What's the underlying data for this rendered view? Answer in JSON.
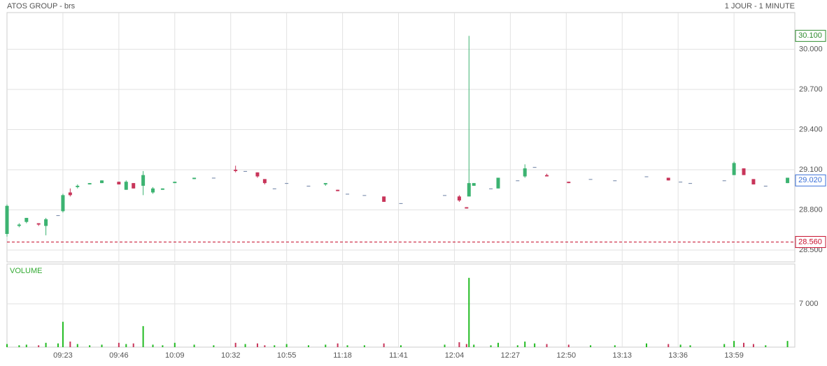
{
  "chart_data": {
    "type": "candlestick",
    "title": "ATOS GROUP - brs",
    "subtitle": "1 JOUR - 1 MINUTE",
    "x": [
      "09:00",
      "09:05",
      "09:08",
      "09:13",
      "09:16",
      "09:21",
      "09:23",
      "09:26",
      "09:29",
      "09:34",
      "09:39",
      "09:46",
      "09:49",
      "09:52",
      "09:56",
      "10:00",
      "10:04",
      "10:09",
      "10:17",
      "10:25",
      "10:34",
      "10:38",
      "10:43",
      "10:46",
      "10:50",
      "10:55",
      "11:04",
      "11:11",
      "11:16",
      "11:20",
      "11:27",
      "11:35",
      "11:42",
      "12:00",
      "12:06",
      "12:09",
      "12:10",
      "12:12",
      "12:19",
      "12:22",
      "12:30",
      "12:33",
      "12:37",
      "12:42",
      "12:51",
      "13:00",
      "13:10",
      "13:23",
      "13:32",
      "13:37",
      "13:41",
      "13:55",
      "13:59",
      "14:03",
      "14:07",
      "14:12",
      "14:21"
    ],
    "open": [
      28.62,
      28.68,
      28.71,
      28.7,
      28.68,
      28.76,
      28.79,
      28.93,
      28.97,
      28.99,
      29.0,
      29.01,
      28.95,
      29.0,
      28.98,
      28.93,
      28.95,
      29.0,
      29.03,
      29.04,
      29.1,
      29.09,
      29.08,
      29.03,
      28.96,
      29.0,
      28.98,
      28.99,
      28.95,
      28.92,
      28.91,
      28.9,
      28.85,
      28.91,
      28.9,
      28.82,
      28.9,
      28.98,
      28.96,
      28.96,
      29.02,
      29.05,
      29.12,
      29.06,
      29.01,
      29.03,
      29.02,
      29.05,
      29.04,
      29.01,
      29.0,
      29.02,
      29.06,
      29.11,
      29.03,
      28.98,
      29.0
    ],
    "high": [
      28.84,
      28.7,
      28.74,
      28.7,
      28.74,
      28.76,
      28.92,
      28.96,
      28.99,
      29.0,
      29.02,
      29.01,
      29.02,
      29.0,
      29.09,
      28.97,
      28.96,
      29.01,
      29.04,
      29.04,
      29.13,
      29.09,
      29.08,
      29.03,
      28.96,
      29.0,
      28.98,
      29.0,
      28.95,
      28.92,
      28.91,
      28.9,
      28.85,
      28.91,
      28.91,
      28.82,
      30.1,
      29.0,
      28.96,
      29.04,
      29.02,
      29.14,
      29.12,
      29.07,
      29.01,
      29.03,
      29.02,
      29.05,
      29.04,
      29.01,
      29.0,
      29.02,
      29.16,
      29.11,
      29.03,
      28.98,
      29.04
    ],
    "low": [
      28.6,
      28.67,
      28.7,
      28.68,
      28.61,
      28.76,
      28.78,
      28.9,
      28.96,
      28.99,
      29.0,
      28.99,
      28.95,
      28.96,
      28.91,
      28.92,
      28.95,
      29.0,
      29.03,
      29.04,
      29.08,
      29.09,
      29.04,
      28.99,
      28.96,
      29.0,
      28.98,
      28.98,
      28.94,
      28.92,
      28.91,
      28.86,
      28.85,
      28.91,
      28.86,
      28.81,
      28.9,
      28.98,
      28.96,
      28.96,
      29.02,
      29.04,
      29.12,
      29.05,
      29.0,
      29.03,
      29.02,
      29.05,
      29.02,
      29.01,
      29.0,
      29.02,
      29.06,
      29.06,
      28.99,
      28.98,
      29.0
    ],
    "close": [
      28.83,
      28.69,
      28.74,
      28.69,
      28.73,
      28.76,
      28.91,
      28.91,
      28.98,
      29.0,
      29.02,
      28.99,
      29.01,
      28.96,
      29.06,
      28.96,
      28.96,
      29.01,
      29.04,
      29.04,
      29.09,
      29.09,
      29.05,
      29.0,
      28.96,
      29.0,
      28.98,
      29.0,
      28.94,
      28.92,
      28.91,
      28.86,
      28.85,
      28.91,
      28.87,
      28.81,
      29.0,
      29.0,
      28.96,
      29.04,
      29.02,
      29.11,
      29.12,
      29.05,
      29.0,
      29.03,
      29.02,
      29.05,
      29.02,
      29.01,
      29.0,
      29.02,
      29.15,
      29.06,
      28.99,
      28.98,
      29.04
    ],
    "xlim": [
      "09:00",
      "14:24"
    ],
    "xticks": [
      "09:23",
      "09:46",
      "10:09",
      "10:32",
      "10:55",
      "11:18",
      "11:41",
      "12:04",
      "12:27",
      "12:50",
      "13:13",
      "13:36",
      "13:59"
    ],
    "ylim": [
      28.411,
      30.274
    ],
    "yticks": [
      {
        "value": 28.5,
        "label": "28.500"
      },
      {
        "value": 28.8,
        "label": "28.800"
      },
      {
        "value": 29.1,
        "label": "29.100"
      },
      {
        "value": 29.4,
        "label": "29.400"
      },
      {
        "value": 29.7,
        "label": "29.700"
      },
      {
        "value": 30.0,
        "label": "30.000"
      }
    ],
    "grid": true,
    "up_color": "#3cb371",
    "down_color": "#c8355a",
    "flat_color": "#6b7fa3",
    "markers": [
      {
        "value": 30.1,
        "label": "30.100",
        "color": "#2e8b2e",
        "line": false
      },
      {
        "value": 29.02,
        "label": "29.020",
        "color": "#3a6fd8",
        "line": false
      },
      {
        "value": 28.56,
        "label": "28.560",
        "color": "#c8102e",
        "line": true
      }
    ],
    "volume": {
      "label": "VOLUME",
      "values": [
        500,
        300,
        400,
        300,
        700,
        600,
        4100,
        900,
        500,
        300,
        400,
        700,
        500,
        600,
        3400,
        400,
        300,
        700,
        400,
        300,
        700,
        500,
        600,
        300,
        300,
        500,
        300,
        400,
        600,
        300,
        300,
        600,
        300,
        400,
        800,
        500,
        11200,
        400,
        300,
        700,
        300,
        900,
        600,
        500,
        400,
        300,
        300,
        600,
        500,
        400,
        300,
        500,
        1000,
        700,
        500,
        300,
        1000
      ],
      "ylim": [
        0,
        13435
      ],
      "yticks": [
        {
          "value": 7000,
          "label": "7 000"
        }
      ],
      "color": "#22bb22"
    }
  }
}
